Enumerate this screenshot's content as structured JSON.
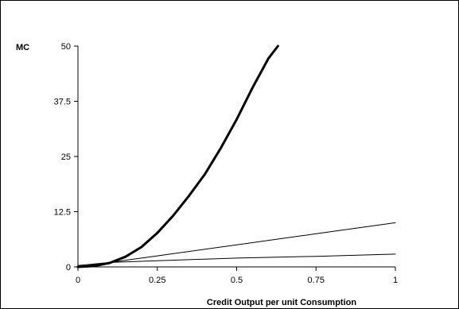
{
  "chart_data": {
    "type": "line",
    "title": "",
    "ylabel": "MC",
    "xlabel": "Credit Output per unit Consumption",
    "xlim": [
      0,
      1
    ],
    "ylim": [
      0,
      50
    ],
    "x_ticks": [
      0,
      0.25,
      0.5,
      0.75,
      1
    ],
    "x_tick_labels": [
      "0",
      "0.25",
      "0.5",
      "0.75",
      "1"
    ],
    "y_ticks": [
      0,
      12.5,
      25,
      37.5,
      50
    ],
    "y_tick_labels": [
      "0",
      "12.5",
      "25",
      "37.5",
      "50"
    ],
    "grid": false,
    "legend": "none",
    "series": [
      {
        "style": "thick",
        "x": [
          0,
          0.05,
          0.1,
          0.15,
          0.2,
          0.25,
          0.3,
          0.35,
          0.4,
          0.45,
          0.5,
          0.55,
          0.6,
          0.63
        ],
        "y": [
          0,
          0.2,
          0.9,
          2.3,
          4.5,
          7.7,
          11.6,
          16.1,
          21.0,
          26.9,
          33.4,
          40.6,
          47.2,
          50.0
        ]
      },
      {
        "style": "thin",
        "x": [
          0,
          0.1,
          0.25,
          0.5,
          0.75,
          1.0
        ],
        "y": [
          0,
          1.0,
          2.5,
          5.0,
          7.5,
          10.0
        ]
      },
      {
        "style": "thin",
        "x": [
          0,
          0.1,
          0.25,
          0.5,
          0.75,
          1.0
        ],
        "y": [
          0.3,
          1.0,
          1.4,
          2.0,
          2.4,
          2.9
        ]
      }
    ]
  }
}
